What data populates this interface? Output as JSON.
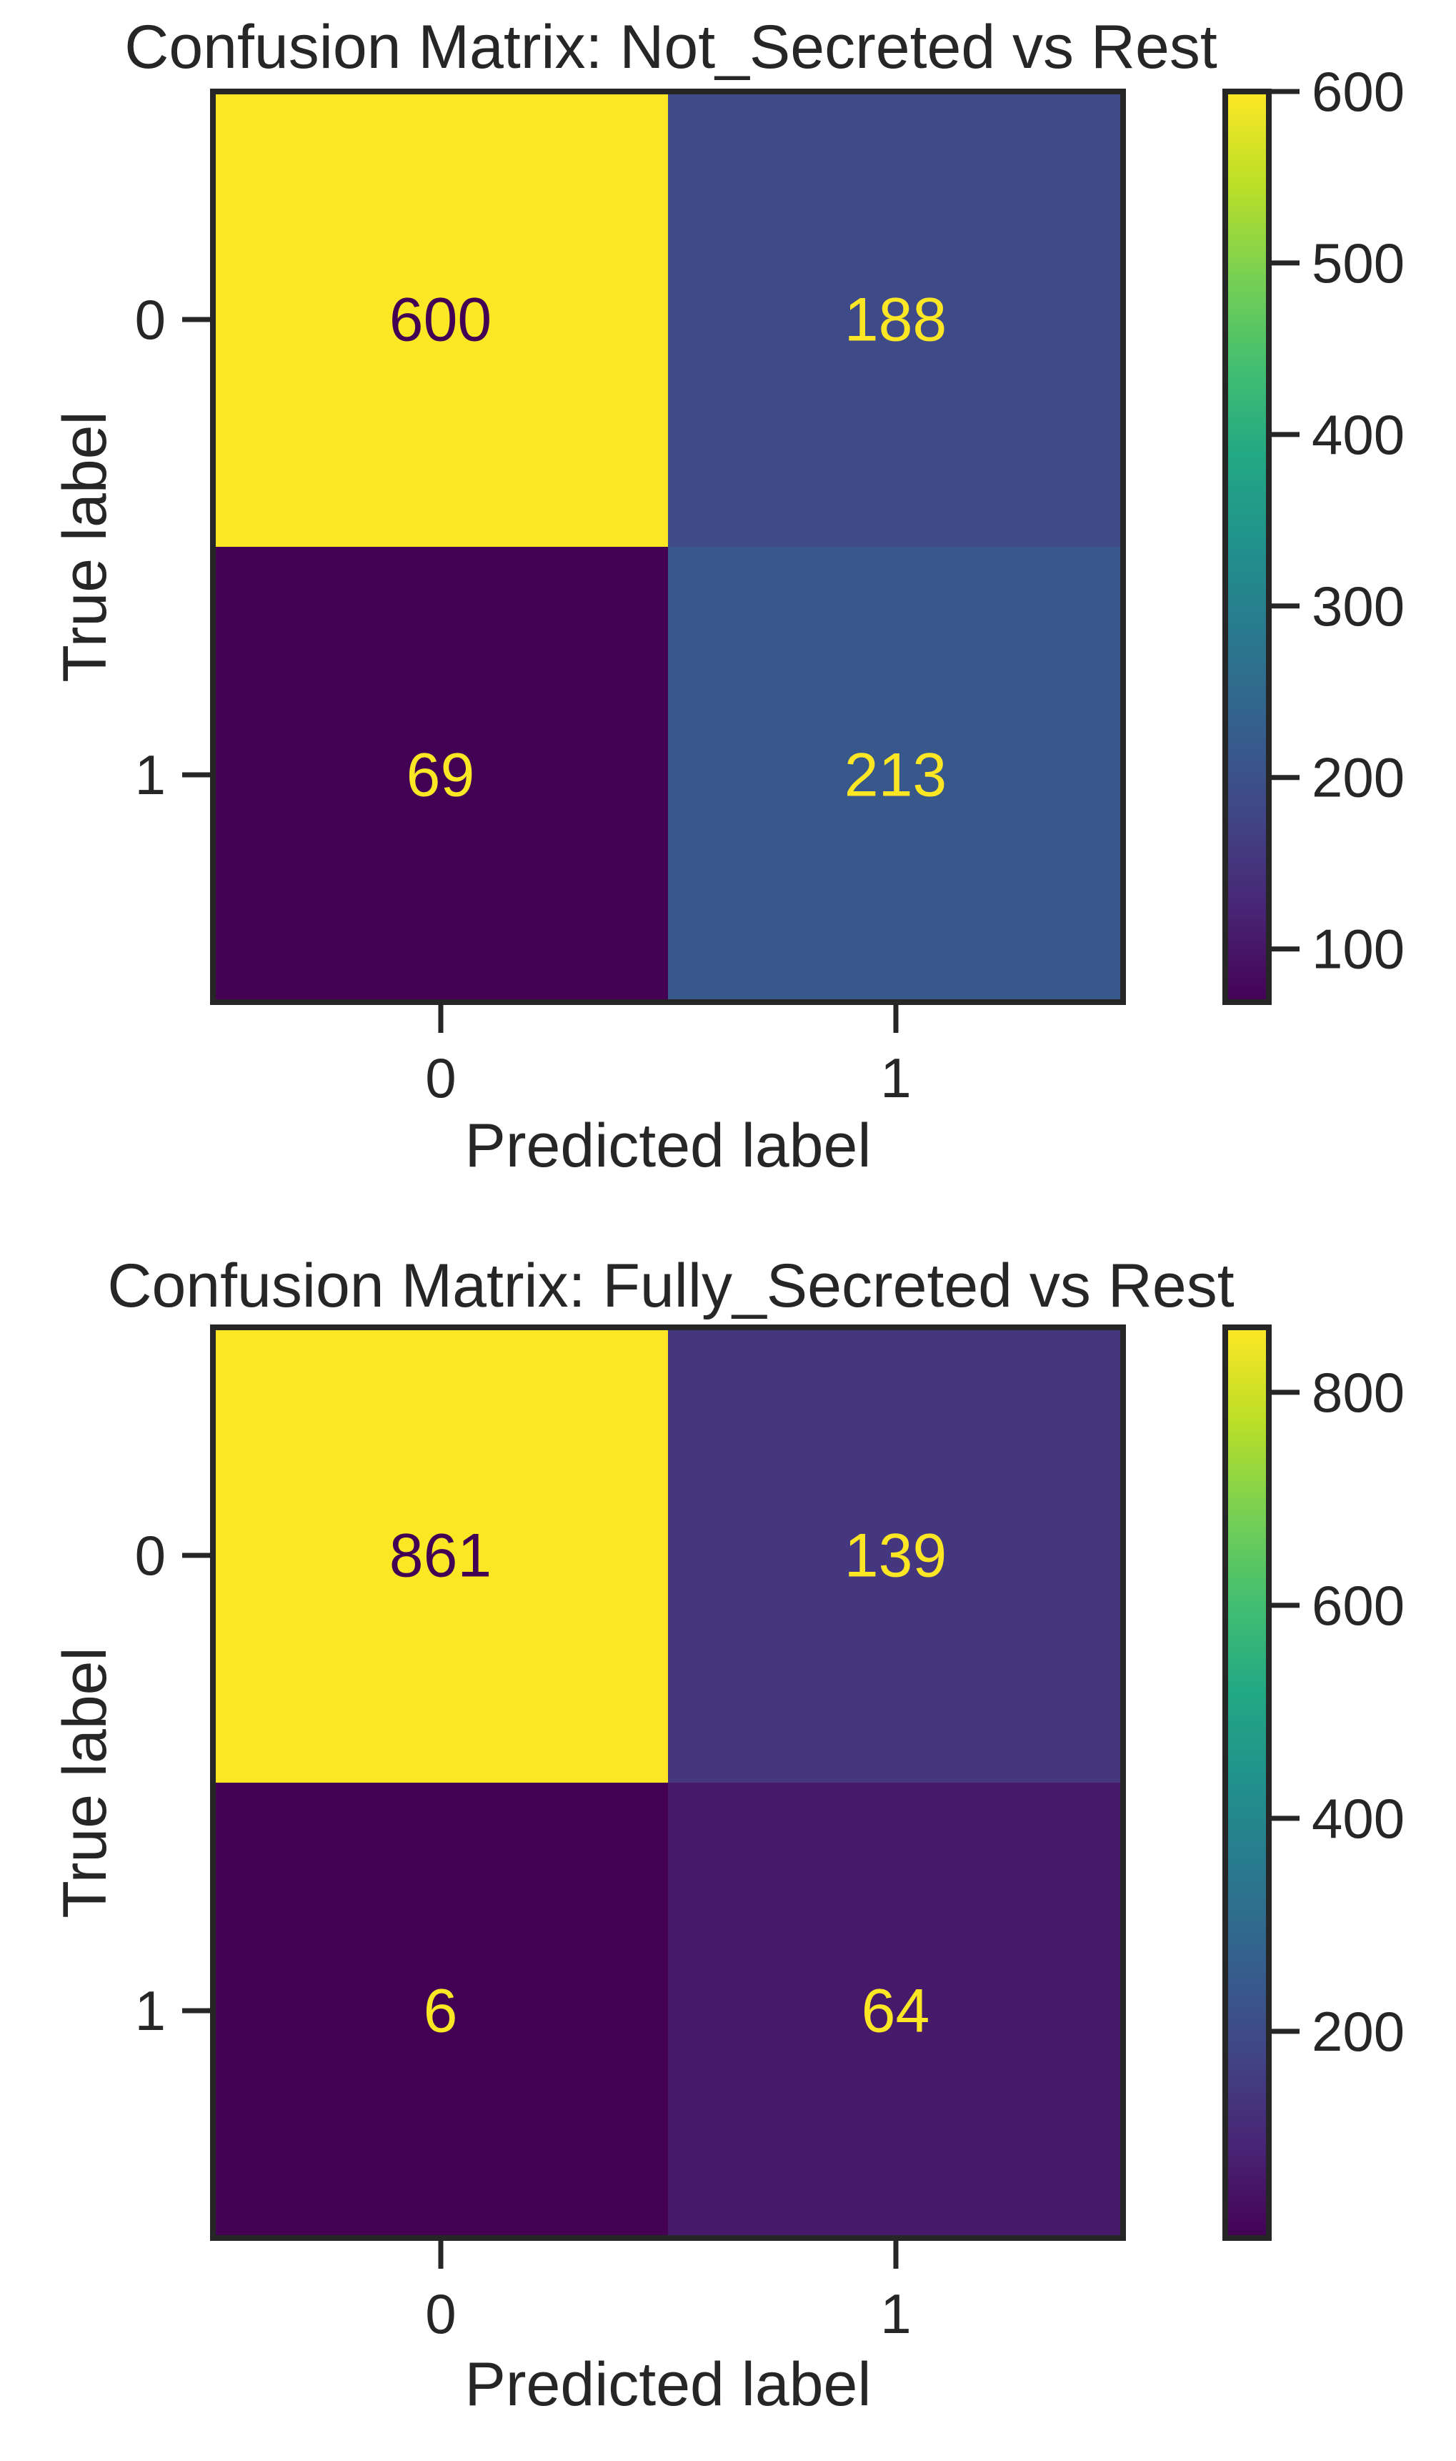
{
  "colors": {
    "text": "#262626",
    "frame": "#262626",
    "colormap": "viridis",
    "background": "#ffffff"
  },
  "chart_data": [
    {
      "type": "heatmap",
      "title": "Confusion Matrix: Not_Secreted vs Rest",
      "xlabel": "Predicted label",
      "ylabel": "True label",
      "x_tick_labels": [
        "0",
        "1"
      ],
      "y_tick_labels": [
        "0",
        "1"
      ],
      "matrix": [
        [
          600,
          188
        ],
        [
          69,
          213
        ]
      ],
      "cell_labels": [
        [
          "600",
          "188"
        ],
        [
          "69",
          "213"
        ]
      ],
      "colorbar": {
        "range": [
          69,
          600
        ],
        "ticks": [
          100,
          200,
          300,
          400,
          500,
          600
        ],
        "tick_labels": [
          "100",
          "200",
          "300",
          "400",
          "500",
          "600"
        ]
      },
      "grid": false
    },
    {
      "type": "heatmap",
      "title": "Confusion Matrix: Fully_Secreted vs Rest",
      "xlabel": "Predicted label",
      "ylabel": "True label",
      "x_tick_labels": [
        "0",
        "1"
      ],
      "y_tick_labels": [
        "0",
        "1"
      ],
      "matrix": [
        [
          861,
          139
        ],
        [
          6,
          64
        ]
      ],
      "cell_labels": [
        [
          "861",
          "139"
        ],
        [
          "6",
          "64"
        ]
      ],
      "colorbar": {
        "range": [
          6,
          861
        ],
        "ticks": [
          200,
          400,
          600,
          800
        ],
        "tick_labels": [
          "200",
          "400",
          "600",
          "800"
        ]
      },
      "grid": false
    }
  ]
}
